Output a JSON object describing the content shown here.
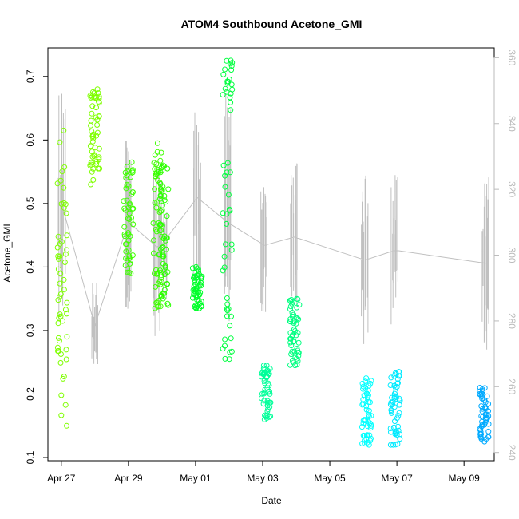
{
  "chart_data": {
    "type": "scatter",
    "title": "ATOM4 Southbound Acetone_GMI",
    "xlabel": "Date",
    "ylabel": "Acetone_GMI",
    "x_tick_labels": [
      "Apr 27",
      "Apr 29",
      "May 01",
      "May 03",
      "May 05",
      "May 07",
      "May 09"
    ],
    "y_tick_labels": [
      "0.1",
      "0.2",
      "0.3",
      "0.4",
      "0.5",
      "0.6",
      "0.7"
    ],
    "y2_tick_labels": [
      "240",
      "260",
      "280",
      "300",
      "320",
      "340",
      "360"
    ],
    "x_day_range": [
      26.6,
      39.9
    ],
    "ylim": [
      0.095,
      0.745
    ],
    "y2lim": [
      237.5,
      363.0
    ],
    "grid": false,
    "legend": "none",
    "secondary_series_color": "#c0c0c0",
    "point_clusters": [
      {
        "x": 27.03,
        "ymin": 0.15,
        "ymax": 0.615,
        "color": "#7fff00"
      },
      {
        "x": 28.0,
        "ymin": 0.53,
        "ymax": 0.68,
        "color": "#7fff00"
      },
      {
        "x": 29.0,
        "ymin": 0.39,
        "ymax": 0.565,
        "color": "#3fff00"
      },
      {
        "x": 29.88,
        "ymin": 0.335,
        "ymax": 0.595,
        "color": "#3fff00"
      },
      {
        "x": 30.05,
        "ymin": 0.34,
        "ymax": 0.56,
        "color": "#2aff00"
      },
      {
        "x": 31.05,
        "ymin": 0.335,
        "ymax": 0.4,
        "color": "#00ff2a"
      },
      {
        "x": 31.95,
        "ymin": 0.255,
        "ymax": 0.725,
        "color": "#00ff3f"
      },
      {
        "x": 33.1,
        "ymin": 0.16,
        "ymax": 0.245,
        "color": "#00ff99"
      },
      {
        "x": 33.95,
        "ymin": 0.245,
        "ymax": 0.35,
        "color": "#00ff80"
      },
      {
        "x": 36.1,
        "ymin": 0.12,
        "ymax": 0.225,
        "color": "#00ffff"
      },
      {
        "x": 36.95,
        "ymin": 0.12,
        "ymax": 0.235,
        "color": "#00eaff"
      },
      {
        "x": 39.6,
        "ymin": 0.125,
        "ymax": 0.21,
        "color": "#00aaff"
      }
    ]
  }
}
